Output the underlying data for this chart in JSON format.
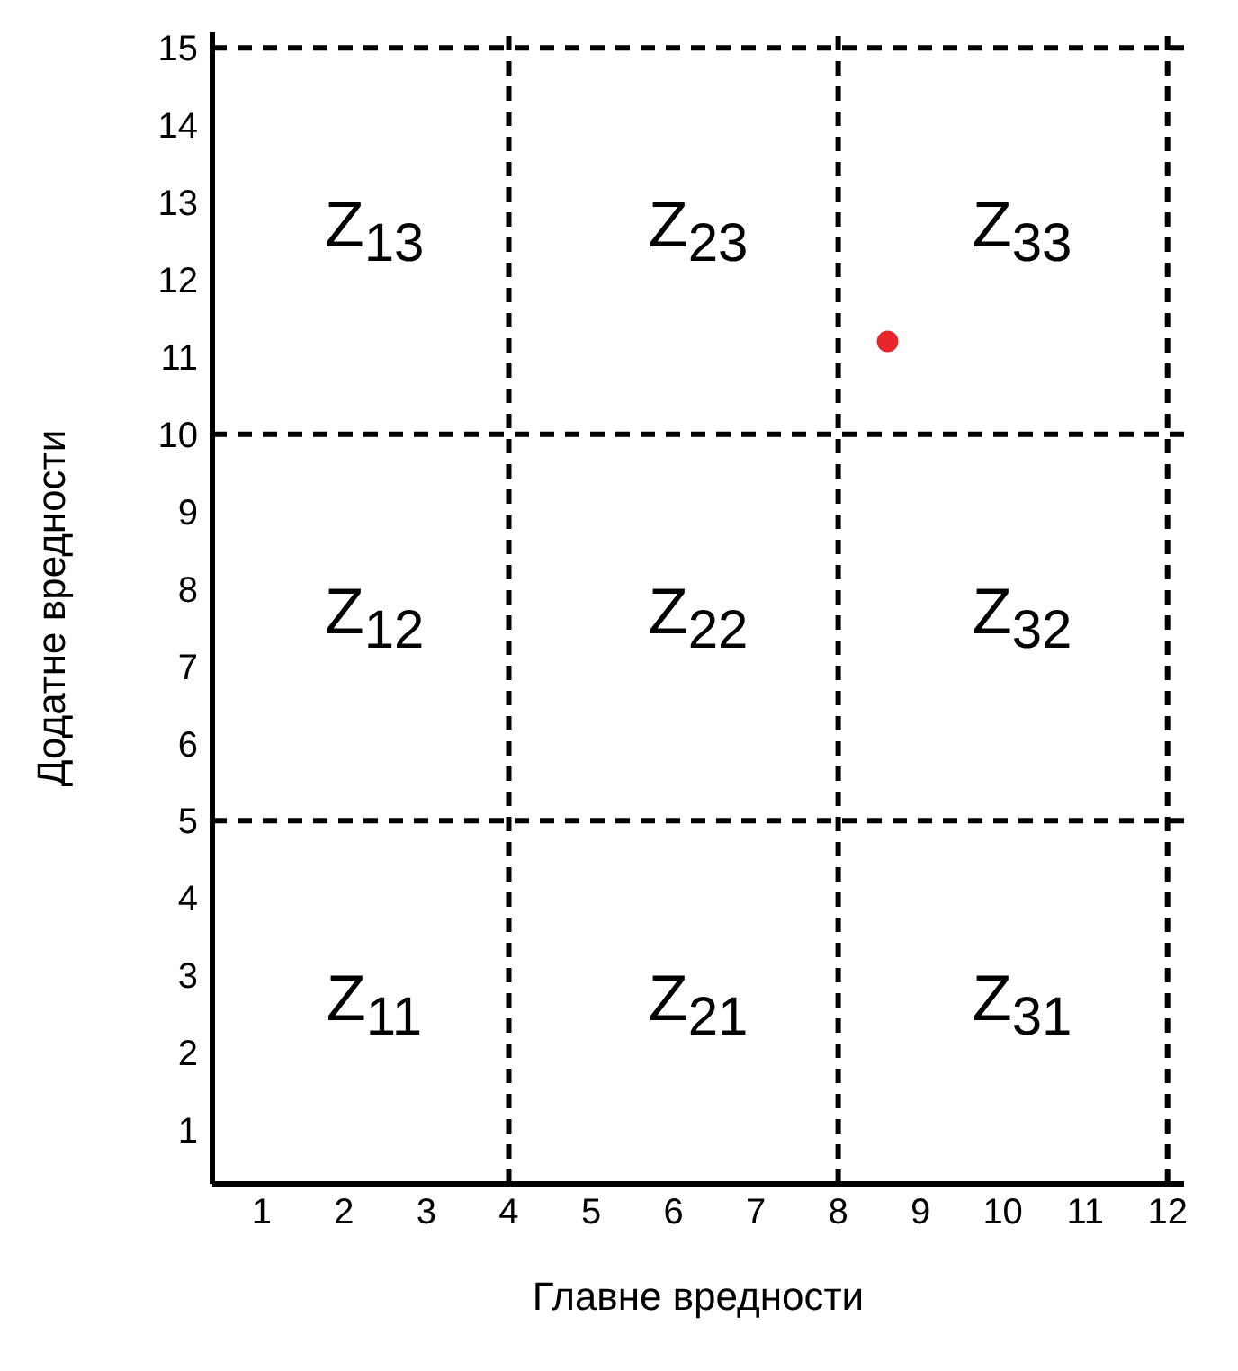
{
  "chart_data": {
    "type": "scatter",
    "xlabel": "Главне вредности",
    "ylabel": "Додатне вредности",
    "x": [
      8.6
    ],
    "values": [
      11.2
    ],
    "color": "#e8262b",
    "marker": "circle",
    "xlim": [
      0.4,
      12.2
    ],
    "xticks": [
      1,
      2,
      3,
      4,
      5,
      6,
      7,
      8,
      9,
      10,
      11,
      12
    ],
    "ylim": [
      0.3,
      15.2
    ],
    "yticks": [
      1,
      2,
      3,
      4,
      5,
      6,
      7,
      8,
      9,
      10,
      11,
      12,
      13,
      14,
      15
    ],
    "grid": false,
    "ref_lines": [
      {
        "axis": "x",
        "value": 4,
        "color": "#000000",
        "line_style": "dashed"
      },
      {
        "axis": "x",
        "value": 8,
        "color": "#000000",
        "line_style": "dashed"
      },
      {
        "axis": "x",
        "value": 12,
        "color": "#000000",
        "line_style": "dashed"
      },
      {
        "axis": "y",
        "value": 5,
        "color": "#000000",
        "line_style": "dashed"
      },
      {
        "axis": "y",
        "value": 10,
        "color": "#000000",
        "line_style": "dashed"
      },
      {
        "axis": "y",
        "value": 15,
        "color": "#000000",
        "line_style": "dashed"
      }
    ],
    "annotations": [
      "Z$_{13}$",
      "Z$_{23}$",
      "Z$_{33}$",
      "Z$_{12}$",
      "Z$_{22}$",
      "Z$_{32}$",
      "Z$_{11}$",
      "Z$_{21}$",
      "Z$_{31}$"
    ]
  }
}
